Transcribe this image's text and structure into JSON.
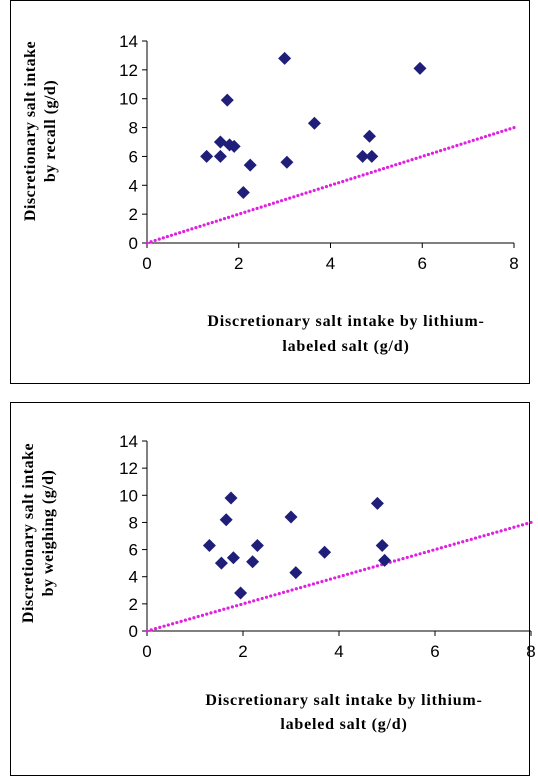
{
  "chart_data": [
    {
      "type": "scatter",
      "xlabel": [
        "Discretionary salt intake by lithium-",
        "labeled salt (g/d)"
      ],
      "ylabel": [
        "Discretionary salt intake",
        "by recall (g/d)"
      ],
      "xlim": [
        0,
        8
      ],
      "ylim": [
        0,
        14
      ],
      "x_ticks": [
        "0",
        "2",
        "4",
        "6",
        "8"
      ],
      "y_ticks": [
        "0",
        "2",
        "4",
        "6",
        "8",
        "10",
        "12",
        "14"
      ],
      "grid": false,
      "colors": {
        "points": "#1f1f7a",
        "reference_line": "#e020e0"
      },
      "reference_line": {
        "x": [
          0,
          8
        ],
        "y": [
          0,
          8
        ]
      },
      "points": [
        {
          "x": 1.3,
          "y": 6.0
        },
        {
          "x": 1.6,
          "y": 7.0
        },
        {
          "x": 1.6,
          "y": 6.0
        },
        {
          "x": 1.75,
          "y": 9.9
        },
        {
          "x": 1.8,
          "y": 6.8
        },
        {
          "x": 1.9,
          "y": 6.7
        },
        {
          "x": 2.1,
          "y": 3.5
        },
        {
          "x": 2.25,
          "y": 5.4
        },
        {
          "x": 3.0,
          "y": 12.8
        },
        {
          "x": 3.05,
          "y": 5.6
        },
        {
          "x": 3.65,
          "y": 8.3
        },
        {
          "x": 4.7,
          "y": 6.0
        },
        {
          "x": 4.85,
          "y": 7.4
        },
        {
          "x": 4.9,
          "y": 6.0
        },
        {
          "x": 5.95,
          "y": 12.1
        }
      ]
    },
    {
      "type": "scatter",
      "xlabel": [
        "Discretionary salt intake by lithium-",
        "labeled salt (g/d)"
      ],
      "ylabel": [
        "Discretionary salt intake",
        "by weighing (g/d)"
      ],
      "xlim": [
        0,
        8
      ],
      "ylim": [
        0,
        14
      ],
      "x_ticks": [
        "0",
        "2",
        "4",
        "6",
        "8"
      ],
      "y_ticks": [
        "0",
        "2",
        "4",
        "6",
        "8",
        "10",
        "12",
        "14"
      ],
      "grid": false,
      "colors": {
        "points": "#1f1f7a",
        "reference_line": "#e020e0"
      },
      "reference_line": {
        "x": [
          0,
          8
        ],
        "y": [
          0,
          8
        ]
      },
      "points": [
        {
          "x": 1.3,
          "y": 6.3
        },
        {
          "x": 1.55,
          "y": 5.0
        },
        {
          "x": 1.65,
          "y": 8.2
        },
        {
          "x": 1.75,
          "y": 9.8
        },
        {
          "x": 1.8,
          "y": 5.4
        },
        {
          "x": 1.95,
          "y": 2.8
        },
        {
          "x": 2.2,
          "y": 5.1
        },
        {
          "x": 2.3,
          "y": 6.3
        },
        {
          "x": 3.0,
          "y": 8.4
        },
        {
          "x": 3.1,
          "y": 4.3
        },
        {
          "x": 3.7,
          "y": 5.8
        },
        {
          "x": 4.8,
          "y": 9.4
        },
        {
          "x": 4.9,
          "y": 6.3
        },
        {
          "x": 4.95,
          "y": 5.2
        }
      ]
    }
  ]
}
